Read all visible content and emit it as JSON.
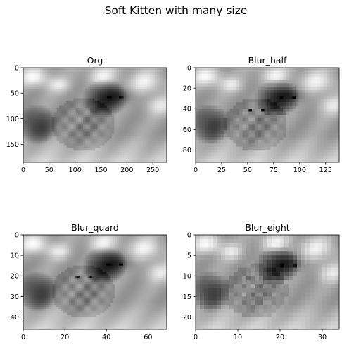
{
  "figure": {
    "title": "Soft Kitten with many size"
  },
  "chart_data": [
    {
      "type": "heatmap",
      "title": "Org",
      "colormap": "gray",
      "xlim": [
        0,
        277
      ],
      "ylim": [
        185,
        0
      ],
      "x_ticks": [
        0,
        50,
        100,
        150,
        200,
        250
      ],
      "y_ticks": [
        0,
        50,
        100,
        150
      ],
      "cols": 60,
      "rows": 40
    },
    {
      "type": "heatmap",
      "title": "Blur_half",
      "colormap": "gray",
      "xlim": [
        0,
        138
      ],
      "ylim": [
        92,
        0
      ],
      "x_ticks": [
        0,
        25,
        50,
        75,
        100,
        125
      ],
      "y_ticks": [
        0,
        20,
        40,
        60,
        80
      ],
      "cols": 46,
      "rows": 30
    },
    {
      "type": "heatmap",
      "title": "Blur_quard",
      "colormap": "gray",
      "xlim": [
        0,
        69
      ],
      "ylim": [
        46,
        0
      ],
      "x_ticks": [
        0,
        20,
        40,
        60
      ],
      "y_ticks": [
        0,
        10,
        20,
        30,
        40
      ],
      "cols": 69,
      "rows": 46
    },
    {
      "type": "heatmap",
      "title": "Blur_eight",
      "colormap": "gray",
      "xlim": [
        0,
        34
      ],
      "ylim": [
        23,
        0
      ],
      "x_ticks": [
        0,
        10,
        20,
        30
      ],
      "y_ticks": [
        0,
        5,
        10,
        15,
        20
      ],
      "cols": 34,
      "rows": 23
    }
  ]
}
